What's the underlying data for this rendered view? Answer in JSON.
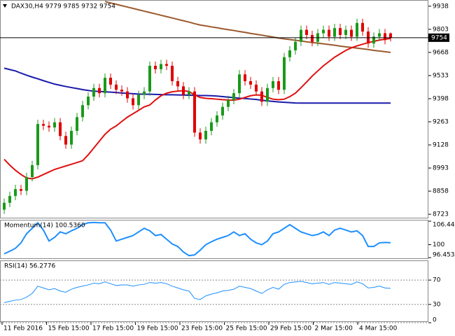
{
  "chart_data": [
    {
      "type": "candlestick",
      "title": "DAX30,H4  9779 9785 9732 9754",
      "ylim": [
        8703,
        9970
      ],
      "yticks": [
        8723,
        8858,
        8993,
        9128,
        9263,
        9398,
        9533,
        9668,
        9803,
        9938
      ],
      "current_price": 9754,
      "up_color": "#1a9a1a",
      "down_color": "#e00000",
      "x_labels": [
        "11 Feb 2016",
        "15 Feb 15:00",
        "17 Feb 15:00",
        "19 Feb 15:00",
        "23 Feb 15:00",
        "25 Feb 15:00",
        "29 Feb 15:00",
        "2 Mar 15:00",
        "4 Mar 15:00"
      ],
      "open": [
        8750,
        8790,
        8830,
        8870,
        8860,
        8940,
        9010,
        9250,
        9240,
        9230,
        9260,
        9180,
        9130,
        9210,
        9290,
        9360,
        9410,
        9460,
        9430,
        9520,
        9480,
        9450,
        9440,
        9400,
        9360,
        9420,
        9440,
        9590,
        9570,
        9600,
        9590,
        9500,
        9470,
        9420,
        9440,
        9200,
        9160,
        9210,
        9260,
        9300,
        9350,
        9390,
        9430,
        9540,
        9500,
        9480,
        9440,
        9380,
        9460,
        9500,
        9450,
        9640,
        9680,
        9730,
        9800,
        9770,
        9730,
        9780,
        9800,
        9760,
        9810,
        9770,
        9800,
        9760,
        9840,
        9790,
        9720,
        9760,
        9780,
        9779
      ],
      "high": [
        8815,
        8855,
        8895,
        8895,
        8965,
        9035,
        9275,
        9275,
        9265,
        9285,
        9285,
        9205,
        9235,
        9315,
        9385,
        9435,
        9485,
        9485,
        9545,
        9545,
        9505,
        9475,
        9465,
        9425,
        9445,
        9465,
        9615,
        9615,
        9625,
        9625,
        9615,
        9525,
        9495,
        9465,
        9465,
        9225,
        9235,
        9285,
        9325,
        9375,
        9415,
        9455,
        9565,
        9565,
        9525,
        9505,
        9465,
        9485,
        9525,
        9525,
        9665,
        9705,
        9755,
        9825,
        9825,
        9795,
        9805,
        9825,
        9825,
        9835,
        9835,
        9825,
        9825,
        9865,
        9865,
        9815,
        9785,
        9805,
        9805,
        9785
      ],
      "low": [
        8725,
        8765,
        8805,
        8835,
        8835,
        8915,
        8985,
        9215,
        9205,
        9205,
        9155,
        9105,
        9105,
        9185,
        9265,
        9335,
        9385,
        9405,
        9405,
        9455,
        9425,
        9415,
        9375,
        9335,
        9335,
        9395,
        9415,
        9545,
        9545,
        9565,
        9475,
        9445,
        9395,
        9395,
        9175,
        9135,
        9135,
        9185,
        9235,
        9275,
        9325,
        9365,
        9405,
        9475,
        9455,
        9415,
        9355,
        9355,
        9435,
        9425,
        9425,
        9615,
        9655,
        9705,
        9745,
        9705,
        9705,
        9755,
        9735,
        9735,
        9745,
        9745,
        9735,
        9735,
        9765,
        9695,
        9695,
        9735,
        9715,
        9732
      ],
      "close": [
        8790,
        8830,
        8870,
        8860,
        8940,
        9010,
        9250,
        9240,
        9230,
        9260,
        9180,
        9130,
        9210,
        9290,
        9360,
        9410,
        9460,
        9430,
        9520,
        9480,
        9450,
        9440,
        9400,
        9360,
        9420,
        9440,
        9590,
        9570,
        9600,
        9590,
        9500,
        9470,
        9420,
        9440,
        9200,
        9160,
        9210,
        9260,
        9300,
        9350,
        9390,
        9430,
        9540,
        9500,
        9480,
        9440,
        9380,
        9460,
        9500,
        9450,
        9640,
        9680,
        9730,
        9800,
        9770,
        9730,
        9780,
        9800,
        9760,
        9810,
        9770,
        9800,
        9760,
        9840,
        9790,
        9720,
        9760,
        9780,
        9740,
        9754
      ],
      "series": [
        {
          "color": "#9b5a2e",
          "values": [
            null,
            null,
            null,
            null,
            null,
            null,
            null,
            null,
            null,
            null,
            null,
            null,
            null,
            null,
            null,
            null,
            null,
            null,
            9965,
            9957,
            9949,
            9941,
            9933,
            9925,
            9917,
            9909,
            9901,
            9893,
            9885,
            9877,
            9869,
            9861,
            9853,
            9845,
            9836,
            9828,
            9823,
            9817,
            9812,
            9806,
            9801,
            9796,
            9790,
            9785,
            9779,
            9774,
            9769,
            9763,
            9758,
            9752,
            9747,
            9743,
            9739,
            9735,
            9730,
            9726,
            9722,
            9718,
            9714,
            9710,
            9705,
            9701,
            9697,
            9693,
            9689,
            9685,
            9680,
            9676,
            9672,
            9668
          ]
        },
        {
          "color": "#1a1aaa",
          "values": [
            9576,
            9568,
            9560,
            9547,
            9535,
            9524,
            9514,
            9503,
            9493,
            9483,
            9476,
            9469,
            9463,
            9457,
            9451,
            9446,
            9442,
            9440,
            9438,
            9436,
            9434,
            9431,
            9429,
            9427,
            9425,
            9424,
            9424,
            9423,
            9422,
            9421,
            9421,
            9420,
            9419,
            9418,
            9417,
            9416,
            9416,
            9415,
            9413,
            9410,
            9407,
            9404,
            9401,
            9399,
            9396,
            9393,
            9389,
            9385,
            9382,
            9379,
            9377,
            9375,
            9373,
            9372,
            9372,
            9372,
            9372,
            9372,
            9372,
            9372,
            9372,
            9372,
            9372,
            9372,
            9372,
            9372,
            9372,
            9372,
            9372,
            9372
          ]
        },
        {
          "color": "#e01010",
          "values": [
            9044,
            9010,
            8980,
            8955,
            8935,
            8930,
            8940,
            8955,
            8970,
            8985,
            8995,
            9005,
            9015,
            9025,
            9036,
            9070,
            9110,
            9150,
            9190,
            9220,
            9239,
            9265,
            9290,
            9310,
            9330,
            9350,
            9361,
            9390,
            9415,
            9430,
            9438,
            9442,
            9445,
            9440,
            9420,
            9405,
            9400,
            9398,
            9395,
            9392,
            9390,
            9389,
            9395,
            9405,
            9415,
            9420,
            9418,
            9405,
            9395,
            9392,
            9395,
            9410,
            9430,
            9462,
            9495,
            9530,
            9560,
            9590,
            9615,
            9640,
            9660,
            9680,
            9695,
            9706,
            9716,
            9725,
            9733,
            9740,
            9745,
            9750
          ]
        }
      ]
    },
    {
      "type": "line",
      "title": "Momentum(14) 100.5360",
      "ylim": [
        96.4538,
        106.4403
      ],
      "yticks": [
        106.4403,
        100,
        96.4538
      ],
      "grid": false,
      "series": [
        {
          "color": "#1e8fff",
          "values": [
            97.5,
            98.2,
            99,
            100.5,
            103,
            104.5,
            106,
            104,
            101,
            102,
            103.5,
            103,
            103.8,
            104.5,
            105.5,
            106,
            106.1,
            106,
            106,
            104,
            101,
            101.5,
            102,
            102.5,
            103.5,
            104.5,
            103.8,
            102.5,
            102.8,
            101.5,
            100.2,
            99.5,
            98,
            97,
            97.2,
            98.5,
            100,
            100.8,
            101.5,
            102,
            102.5,
            103.5,
            102.5,
            103,
            101.5,
            100.5,
            100,
            101,
            103,
            103.5,
            104.5,
            105.5,
            104.5,
            103.5,
            103,
            102.5,
            102.8,
            103.5,
            102.5,
            104,
            104.5,
            104,
            103.5,
            103.8,
            102.5,
            99.5,
            99.5,
            100.5,
            100.6,
            100.536
          ]
        }
      ]
    },
    {
      "type": "line",
      "title": "RSI(14) 56.2776",
      "ylim": [
        0,
        100
      ],
      "yticks": [
        70,
        30,
        0
      ],
      "grid": true,
      "series": [
        {
          "color": "#1e8fff",
          "values": [
            33,
            35,
            37,
            38,
            42,
            48,
            60,
            57,
            54,
            56,
            52,
            50,
            55,
            58,
            60,
            62,
            65,
            64,
            67,
            64,
            61,
            62,
            62,
            60,
            62,
            63,
            66,
            65,
            66,
            64,
            60,
            57,
            54,
            52,
            40,
            38,
            44,
            47,
            49,
            52,
            53,
            55,
            60,
            58,
            56,
            52,
            48,
            54,
            58,
            55,
            63,
            66,
            67,
            68,
            66,
            64,
            65,
            66,
            63,
            66,
            65,
            64,
            63,
            67,
            64,
            57,
            58,
            60,
            57,
            56.2776
          ]
        }
      ]
    }
  ]
}
